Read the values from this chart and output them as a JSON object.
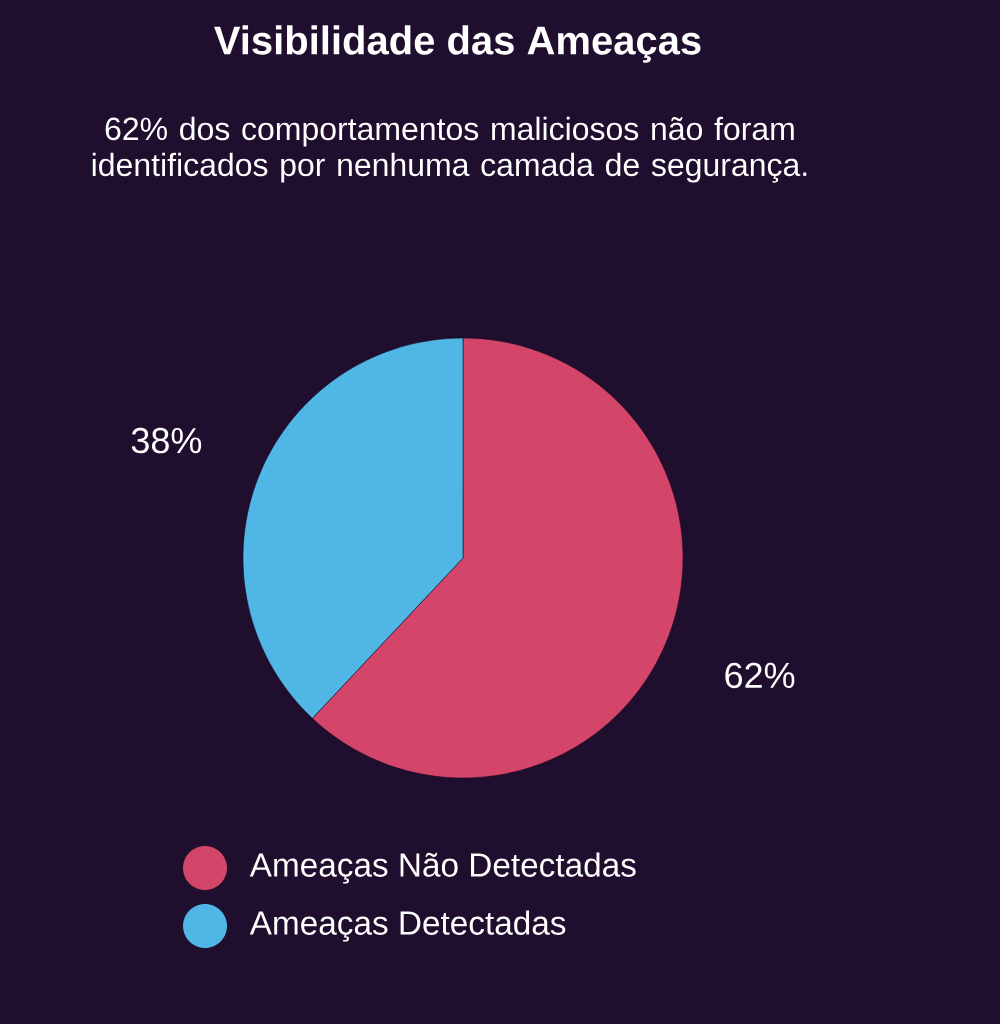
{
  "chart_data": {
    "type": "pie",
    "title": "Visibilidade das Ameaças",
    "subtitle": "62% dos comportamentos maliciosos não foram identificados por nenhuma camada de segurança.",
    "categories": [
      "Ameaças Não Detectadas",
      "Ameaças Detectadas"
    ],
    "values": [
      62,
      38
    ],
    "colors": [
      "#d4456a",
      "#4fb6e6"
    ],
    "value_labels": [
      "62%",
      "38%"
    ],
    "legend": "bottom"
  }
}
